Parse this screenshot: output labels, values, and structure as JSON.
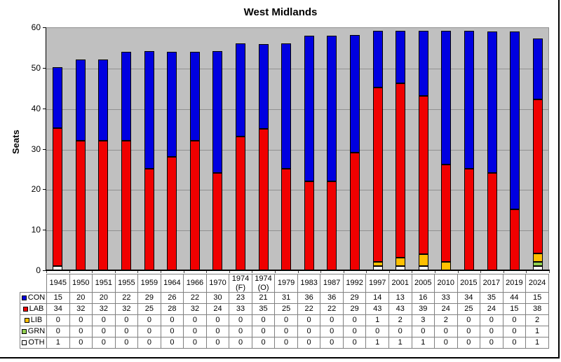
{
  "chart_data": {
    "type": "bar",
    "stacked": true,
    "title": "West Midlands",
    "ylabel": "Seats",
    "ylim": [
      0,
      60
    ],
    "yticks": [
      0,
      10,
      20,
      30,
      40,
      50,
      60
    ],
    "grid": true,
    "plot_background": "#C0C0C0",
    "gridline_color": "#909090",
    "legend_position": "table-left-column",
    "categories": [
      "1945",
      "1950",
      "1951",
      "1955",
      "1959",
      "1964",
      "1966",
      "1970",
      "1974 (F)",
      "1974 (O)",
      "1979",
      "1983",
      "1987",
      "1992",
      "1997",
      "2001",
      "2005",
      "2010",
      "2015",
      "2017",
      "2019",
      "2024"
    ],
    "series": [
      {
        "name": "CON",
        "color": "#0000E0",
        "values": [
          15,
          20,
          20,
          22,
          29,
          26,
          22,
          30,
          23,
          21,
          31,
          36,
          36,
          29,
          14,
          13,
          16,
          33,
          34,
          35,
          44,
          15
        ]
      },
      {
        "name": "LAB",
        "color": "#F00000",
        "values": [
          34,
          32,
          32,
          32,
          25,
          28,
          32,
          24,
          33,
          35,
          25,
          22,
          22,
          29,
          43,
          43,
          39,
          24,
          25,
          24,
          15,
          38
        ]
      },
      {
        "name": "LIB",
        "color": "#FFC000",
        "values": [
          0,
          0,
          0,
          0,
          0,
          0,
          0,
          0,
          0,
          0,
          0,
          0,
          0,
          0,
          1,
          2,
          3,
          2,
          0,
          0,
          0,
          2
        ]
      },
      {
        "name": "GRN",
        "color": "#92D050",
        "values": [
          0,
          0,
          0,
          0,
          0,
          0,
          0,
          0,
          0,
          0,
          0,
          0,
          0,
          0,
          0,
          0,
          0,
          0,
          0,
          0,
          0,
          1
        ]
      },
      {
        "name": "OTH",
        "color": "#FFFFFF",
        "values": [
          1,
          0,
          0,
          0,
          0,
          0,
          0,
          0,
          0,
          0,
          0,
          0,
          0,
          0,
          1,
          1,
          1,
          0,
          0,
          0,
          0,
          1
        ]
      }
    ]
  }
}
